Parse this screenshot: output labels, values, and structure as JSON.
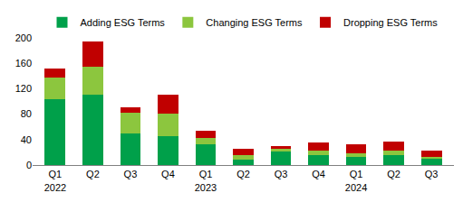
{
  "chart_data": {
    "type": "bar",
    "stacked": true,
    "categories": [
      "Q1\n2022",
      "Q2",
      "Q3",
      "Q4",
      "Q1\n2023",
      "Q2",
      "Q3",
      "Q4",
      "Q1\n2024",
      "Q2",
      "Q3"
    ],
    "series": [
      {
        "name": "Adding ESG Terms",
        "color": "#00a04a",
        "values": [
          104,
          110,
          49,
          46,
          33,
          9,
          21,
          15,
          13,
          16,
          10
        ]
      },
      {
        "name": "Changing ESG Terms",
        "color": "#8cc63e",
        "values": [
          33,
          45,
          33,
          35,
          9,
          7,
          5,
          8,
          5,
          6,
          3
        ]
      },
      {
        "name": "Dropping ESG Terms",
        "color": "#c00000",
        "values": [
          15,
          39,
          9,
          30,
          12,
          9,
          4,
          12,
          14,
          15,
          9
        ]
      }
    ],
    "ylim": [
      0,
      200
    ],
    "yticks": [
      0,
      40,
      80,
      120,
      160,
      200
    ],
    "grid": false,
    "legend": "top"
  }
}
